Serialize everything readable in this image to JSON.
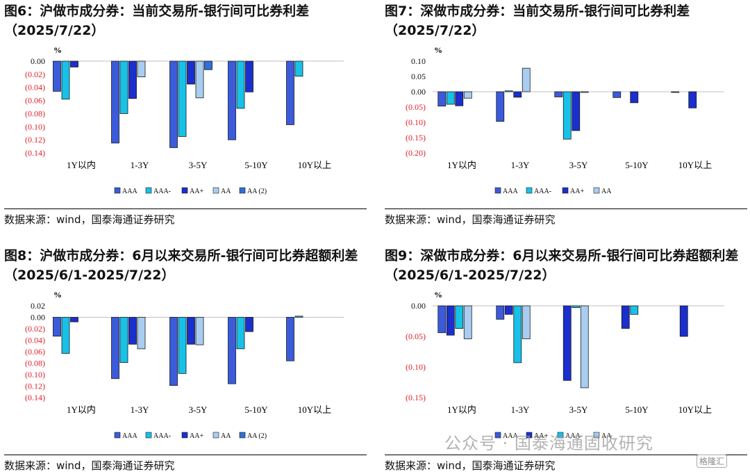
{
  "panels": [
    {
      "title": "图6：沪做市成分券：当前交易所-银行间可比券利差（2025/7/22）",
      "source": "数据来源：wind，国泰海通证券研究"
    },
    {
      "title": "图7：深做市成分券：当前交易所-银行间可比券利差（2025/7/22）",
      "source": "数据来源：wind，国泰海通证券研究"
    },
    {
      "title": "图8：沪做市成分券：6月以来交易所-银行间可比券超额利差（2025/6/1-2025/7/22）",
      "source": "数据来源：wind，国泰海通证券研究"
    },
    {
      "title": "图9：深做市成分券：6月以来交易所-银行间可比券超额利差（2025/6/1-2025/7/22）",
      "source": "数据来源：wind，国泰海通证券研究"
    }
  ],
  "watermark": "公众号 · 国泰海通固收研究",
  "watermark_icon": "格隆汇",
  "colors": {
    "AAA": "#3b5bdb",
    "AAA-": "#17c1e8",
    "AA+": "#1a2fcc",
    "AA": "#a9cdf0",
    "AA(2)": "#2f6fd6",
    "negative_tick": "#e0202a"
  },
  "chart_data": [
    {
      "type": "bar",
      "unit": "%",
      "categories": [
        "1Y以内",
        "1-3Y",
        "3-5Y",
        "5-10Y",
        "10Y以上"
      ],
      "ylim": [
        -0.14,
        0.0
      ],
      "yticks": [
        0.0,
        -0.02,
        -0.04,
        -0.06,
        -0.08,
        -0.1,
        -0.12,
        -0.14
      ],
      "series": [
        {
          "name": "AAA",
          "values": [
            -0.046,
            -0.125,
            -0.132,
            -0.12,
            -0.097
          ]
        },
        {
          "name": "AAA-",
          "values": [
            -0.058,
            -0.08,
            -0.115,
            -0.072,
            -0.023
          ]
        },
        {
          "name": "AA+",
          "values": [
            -0.009,
            -0.057,
            -0.035,
            -0.047,
            null
          ]
        },
        {
          "name": "AA",
          "values": [
            null,
            -0.024,
            -0.056,
            null,
            null
          ]
        },
        {
          "name": "AA (2)",
          "values": [
            null,
            null,
            -0.013,
            null,
            null
          ]
        }
      ]
    },
    {
      "type": "bar",
      "unit": "%",
      "categories": [
        "1Y以内",
        "1-3Y",
        "3-5Y",
        "5-10Y",
        "10Y以上"
      ],
      "ylim": [
        -0.2,
        0.1
      ],
      "yticks": [
        0.1,
        0.05,
        0.0,
        -0.05,
        -0.1,
        -0.15,
        -0.2
      ],
      "series": [
        {
          "name": "AAA",
          "values": [
            -0.047,
            -0.097,
            -0.017,
            -0.019,
            -0.002
          ]
        },
        {
          "name": "AAA-",
          "values": [
            -0.041,
            0.003,
            -0.155,
            null,
            null
          ]
        },
        {
          "name": "AA+",
          "values": [
            -0.046,
            -0.018,
            -0.127,
            -0.036,
            -0.053
          ]
        },
        {
          "name": "AA",
          "values": [
            -0.021,
            0.077,
            -0.002,
            null,
            null
          ]
        }
      ]
    },
    {
      "type": "bar",
      "unit": "%",
      "categories": [
        "1Y以内",
        "1-3Y",
        "3-5Y",
        "5-10Y",
        "10Y以上"
      ],
      "ylim": [
        -0.14,
        0.02
      ],
      "yticks": [
        0.02,
        0.0,
        -0.02,
        -0.04,
        -0.06,
        -0.08,
        -0.1,
        -0.12,
        -0.14
      ],
      "series": [
        {
          "name": "AAA",
          "values": [
            -0.033,
            -0.107,
            -0.119,
            -0.116,
            -0.076
          ]
        },
        {
          "name": "AAA-",
          "values": [
            -0.063,
            -0.079,
            -0.098,
            -0.055,
            0.002
          ]
        },
        {
          "name": "AA+",
          "values": [
            -0.008,
            -0.047,
            -0.047,
            -0.025,
            null
          ]
        },
        {
          "name": "AA",
          "values": [
            null,
            -0.055,
            -0.048,
            null,
            null
          ]
        },
        {
          "name": "AA (2)",
          "values": [
            null,
            null,
            null,
            null,
            null
          ]
        }
      ]
    },
    {
      "type": "bar",
      "unit": "%",
      "categories": [
        "1Y以内",
        "1-3Y",
        "3-5Y",
        "5-10Y",
        "10Y以上"
      ],
      "ylim": [
        -0.15,
        0.0
      ],
      "yticks": [
        0.0,
        -0.05,
        -0.1,
        -0.15
      ],
      "series": [
        {
          "name": "AAA",
          "values": [
            -0.044,
            -0.022,
            null,
            null,
            null
          ]
        },
        {
          "name": "AA+",
          "values": [
            -0.048,
            -0.014,
            -0.122,
            -0.037,
            -0.05
          ]
        },
        {
          "name": "AAA-",
          "values": [
            -0.037,
            -0.093,
            -0.003,
            -0.014,
            null
          ]
        },
        {
          "name": "AA",
          "values": [
            -0.054,
            -0.054,
            -0.134,
            null,
            null
          ]
        }
      ]
    }
  ]
}
